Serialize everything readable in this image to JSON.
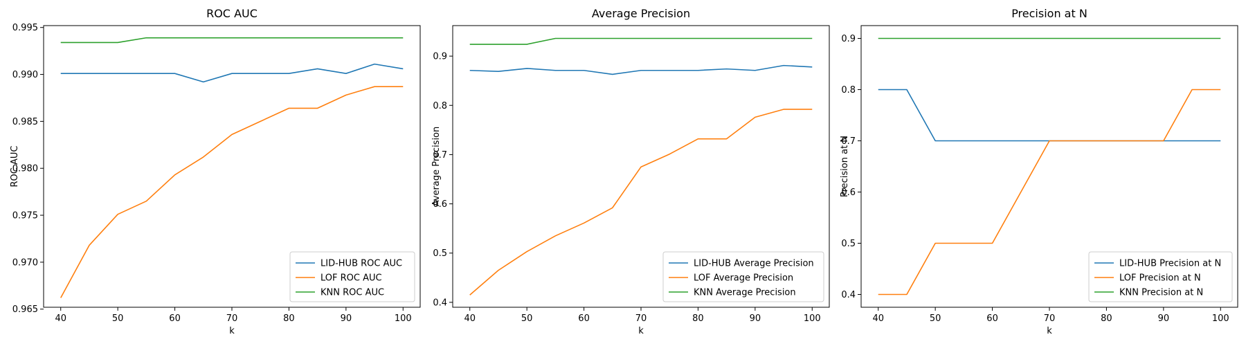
{
  "colors": {
    "lid_hub": "#1f77b4",
    "lof": "#ff7f0e",
    "knn": "#2ca02c"
  },
  "chart_data": [
    {
      "type": "line",
      "title": "ROC AUC",
      "xlabel": "k",
      "ylabel": "ROC AUC",
      "xlim": [
        37,
        103
      ],
      "ylim": [
        0.9652,
        0.9952
      ],
      "xticks": [
        40,
        50,
        60,
        70,
        80,
        90,
        100
      ],
      "xtick_labels": [
        "40",
        "50",
        "60",
        "70",
        "80",
        "90",
        "100"
      ],
      "yticks": [
        0.965,
        0.97,
        0.975,
        0.98,
        0.985,
        0.99,
        0.995
      ],
      "ytick_labels": [
        "0.965",
        "0.970",
        "0.975",
        "0.980",
        "0.985",
        "0.990",
        "0.995"
      ],
      "legend_position": "lower-right",
      "x": [
        40,
        45,
        50,
        55,
        60,
        65,
        70,
        75,
        80,
        85,
        90,
        95,
        100
      ],
      "series": [
        {
          "name": "LID-HUB ROC AUC",
          "color": "lid_hub",
          "values": [
            0.9901,
            0.9901,
            0.9901,
            0.9901,
            0.9901,
            0.9892,
            0.9901,
            0.9901,
            0.9901,
            0.9906,
            0.9901,
            0.9911,
            0.9906
          ]
        },
        {
          "name": "LOF ROC AUC",
          "color": "lof",
          "values": [
            0.9662,
            0.9718,
            0.9751,
            0.9765,
            0.9793,
            0.9812,
            0.9836,
            0.985,
            0.9864,
            0.9864,
            0.9878,
            0.9887,
            0.9887
          ]
        },
        {
          "name": "KNN ROC AUC",
          "color": "knn",
          "values": [
            0.9934,
            0.9934,
            0.9934,
            0.9939,
            0.9939,
            0.9939,
            0.9939,
            0.9939,
            0.9939,
            0.9939,
            0.9939,
            0.9939,
            0.9939
          ]
        }
      ]
    },
    {
      "type": "line",
      "title": "Average Precision",
      "xlabel": "k",
      "ylabel": "Average Precision",
      "xlim": [
        37,
        103
      ],
      "ylim": [
        0.39,
        0.962
      ],
      "xticks": [
        40,
        50,
        60,
        70,
        80,
        90,
        100
      ],
      "xtick_labels": [
        "40",
        "50",
        "60",
        "70",
        "80",
        "90",
        "100"
      ],
      "yticks": [
        0.4,
        0.5,
        0.6,
        0.7,
        0.8,
        0.9
      ],
      "ytick_labels": [
        "0.4",
        "0.5",
        "0.6",
        "0.7",
        "0.8",
        "0.9"
      ],
      "legend_position": "lower-right",
      "x": [
        40,
        45,
        50,
        55,
        60,
        65,
        70,
        75,
        80,
        85,
        90,
        95,
        100
      ],
      "series": [
        {
          "name": "LID-HUB Average Precision",
          "color": "lid_hub",
          "values": [
            0.871,
            0.869,
            0.875,
            0.871,
            0.871,
            0.863,
            0.871,
            0.871,
            0.871,
            0.874,
            0.871,
            0.881,
            0.878
          ]
        },
        {
          "name": "LOF Average Precision",
          "color": "lof",
          "values": [
            0.415,
            0.465,
            0.503,
            0.535,
            0.561,
            0.592,
            0.675,
            0.701,
            0.732,
            0.732,
            0.776,
            0.792,
            0.792
          ]
        },
        {
          "name": "KNN Average Precision",
          "color": "knn",
          "values": [
            0.924,
            0.924,
            0.924,
            0.936,
            0.936,
            0.936,
            0.936,
            0.936,
            0.936,
            0.936,
            0.936,
            0.936,
            0.936
          ]
        }
      ]
    },
    {
      "type": "line",
      "title": "Precision at N",
      "xlabel": "k",
      "ylabel": "Precision at N",
      "xlim": [
        37,
        103
      ],
      "ylim": [
        0.375,
        0.925
      ],
      "xticks": [
        40,
        50,
        60,
        70,
        80,
        90,
        100
      ],
      "xtick_labels": [
        "40",
        "50",
        "60",
        "70",
        "80",
        "90",
        "100"
      ],
      "yticks": [
        0.4,
        0.5,
        0.6,
        0.7,
        0.8,
        0.9
      ],
      "ytick_labels": [
        "0.4",
        "0.5",
        "0.6",
        "0.7",
        "0.8",
        "0.9"
      ],
      "legend_position": "lower-right",
      "x": [
        40,
        45,
        50,
        55,
        60,
        65,
        70,
        75,
        80,
        85,
        90,
        95,
        100
      ],
      "series": [
        {
          "name": "LID-HUB Precision at N",
          "color": "lid_hub",
          "values": [
            0.8,
            0.8,
            0.7,
            0.7,
            0.7,
            0.7,
            0.7,
            0.7,
            0.7,
            0.7,
            0.7,
            0.7,
            0.7
          ]
        },
        {
          "name": "LOF Precision at N",
          "color": "lof",
          "values": [
            0.4,
            0.4,
            0.5,
            0.5,
            0.5,
            0.6,
            0.7,
            0.7,
            0.7,
            0.7,
            0.7,
            0.8,
            0.8
          ]
        },
        {
          "name": "KNN Precision at N",
          "color": "knn",
          "values": [
            0.9,
            0.9,
            0.9,
            0.9,
            0.9,
            0.9,
            0.9,
            0.9,
            0.9,
            0.9,
            0.9,
            0.9,
            0.9
          ]
        }
      ]
    }
  ]
}
